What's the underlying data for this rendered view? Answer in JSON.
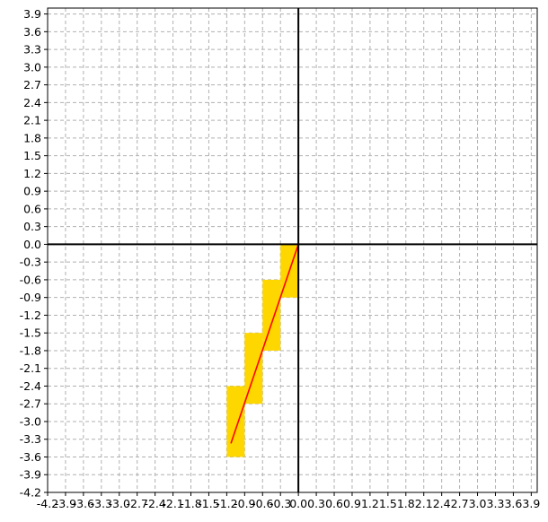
{
  "chart_data": {
    "type": "line",
    "title": "",
    "xlabel": "",
    "ylabel": "",
    "xlim": [
      -4.2,
      4.0
    ],
    "ylim": [
      -4.2,
      4.0
    ],
    "grid": true,
    "x_ticks": [
      "-4.2",
      "-3.9",
      "-3.6",
      "-3.3",
      "-3.0",
      "-2.7",
      "-2.4",
      "-2.1",
      "-1.8",
      "-1.5",
      "-1.2",
      "-0.9",
      "-0.6",
      "-0.3",
      "0.0",
      "0.3",
      "0.6",
      "0.9",
      "1.2",
      "1.5",
      "1.8",
      "2.1",
      "2.4",
      "2.7",
      "3.0",
      "3.3",
      "3.6",
      "3.9"
    ],
    "y_ticks": [
      "-4.2",
      "-3.9",
      "-3.6",
      "-3.3",
      "-3.0",
      "-2.7",
      "-2.4",
      "-2.1",
      "-1.8",
      "-1.5",
      "-1.2",
      "-0.9",
      "-0.6",
      "-0.3",
      "0.0",
      "0.3",
      "0.6",
      "0.9",
      "1.2",
      "1.5",
      "1.8",
      "2.1",
      "2.4",
      "2.7",
      "3.0",
      "3.3",
      "3.6",
      "3.9"
    ],
    "rectangles": [
      {
        "x0": -0.3,
        "x1": 0.0,
        "y0": -0.9,
        "y1": 0.0
      },
      {
        "x0": -0.6,
        "x1": -0.3,
        "y0": -1.8,
        "y1": -0.6
      },
      {
        "x0": -0.9,
        "x1": -0.6,
        "y0": -2.7,
        "y1": -1.5
      },
      {
        "x0": -1.2,
        "x1": -0.9,
        "y0": -3.6,
        "y1": -2.4
      }
    ],
    "line": {
      "x": [
        0.0,
        -1.13
      ],
      "y": [
        0.0,
        -3.37
      ]
    },
    "colors": {
      "rect_fill": "#ffd700",
      "line": "#ff0000",
      "axis": "#000000",
      "grid": "#b0b0b0"
    }
  }
}
